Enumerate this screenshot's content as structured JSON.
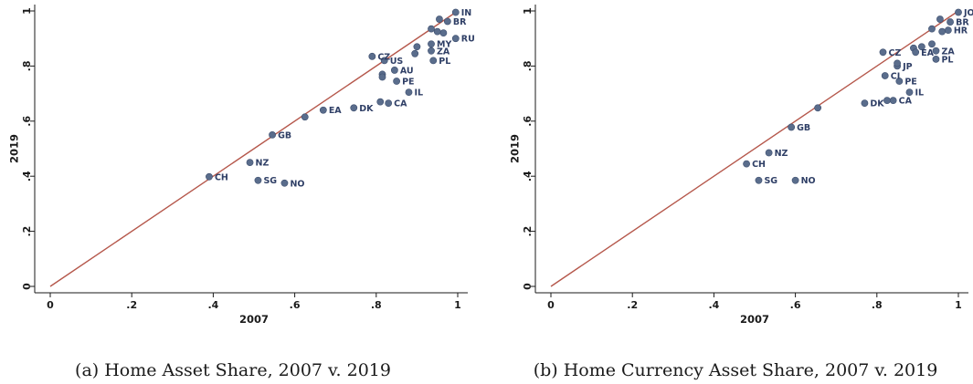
{
  "chart_data": [
    {
      "type": "scatter",
      "caption": "(a) Home Asset Share, 2007 v. 2019",
      "xlabel": "2007",
      "ylabel": "2019",
      "xlim": [
        0,
        1
      ],
      "ylim": [
        0,
        1
      ],
      "xticks": [
        "0",
        ".2",
        ".4",
        ".6",
        ".8",
        "1"
      ],
      "yticks": [
        "0",
        ".2",
        ".4",
        ".6",
        ".8",
        "1"
      ],
      "reference_line": "45-degree",
      "grid": false,
      "points": [
        {
          "label": "IN",
          "x": 0.995,
          "y": 0.995
        },
        {
          "label": "BR",
          "x": 0.975,
          "y": 0.962
        },
        {
          "label": "",
          "x": 0.955,
          "y": 0.97
        },
        {
          "label": "",
          "x": 0.935,
          "y": 0.935
        },
        {
          "label": "",
          "x": 0.965,
          "y": 0.92
        },
        {
          "label": "",
          "x": 0.95,
          "y": 0.925
        },
        {
          "label": "RU",
          "x": 0.995,
          "y": 0.9
        },
        {
          "label": "MY",
          "x": 0.935,
          "y": 0.88
        },
        {
          "label": "",
          "x": 0.9,
          "y": 0.87
        },
        {
          "label": "ZA",
          "x": 0.935,
          "y": 0.855
        },
        {
          "label": "",
          "x": 0.895,
          "y": 0.845
        },
        {
          "label": "CZ",
          "x": 0.79,
          "y": 0.835
        },
        {
          "label": "US",
          "x": 0.82,
          "y": 0.82
        },
        {
          "label": "PL",
          "x": 0.94,
          "y": 0.82
        },
        {
          "label": "AU",
          "x": 0.845,
          "y": 0.785
        },
        {
          "label": "",
          "x": 0.815,
          "y": 0.77
        },
        {
          "label": "",
          "x": 0.815,
          "y": 0.76
        },
        {
          "label": "PE",
          "x": 0.85,
          "y": 0.745
        },
        {
          "label": "IL",
          "x": 0.88,
          "y": 0.705
        },
        {
          "label": "",
          "x": 0.81,
          "y": 0.67
        },
        {
          "label": "CA",
          "x": 0.83,
          "y": 0.665
        },
        {
          "label": "DK",
          "x": 0.745,
          "y": 0.648
        },
        {
          "label": "EA",
          "x": 0.67,
          "y": 0.64
        },
        {
          "label": "",
          "x": 0.625,
          "y": 0.615
        },
        {
          "label": "GB",
          "x": 0.545,
          "y": 0.55
        },
        {
          "label": "NZ",
          "x": 0.49,
          "y": 0.45
        },
        {
          "label": "CH",
          "x": 0.39,
          "y": 0.398
        },
        {
          "label": "SG",
          "x": 0.51,
          "y": 0.385
        },
        {
          "label": "NO",
          "x": 0.575,
          "y": 0.375
        }
      ]
    },
    {
      "type": "scatter",
      "caption": "(b) Home Currency Asset Share, 2007 v. 2019",
      "xlabel": "2007",
      "ylabel": "2019",
      "xlim": [
        0,
        1
      ],
      "ylim": [
        0,
        1
      ],
      "xticks": [
        "0",
        ".2",
        ".4",
        ".6",
        ".8",
        "1"
      ],
      "yticks": [
        "0",
        ".2",
        ".4",
        ".6",
        ".8",
        "1"
      ],
      "reference_line": "45-degree",
      "grid": false,
      "points": [
        {
          "label": "JO",
          "x": 1.0,
          "y": 0.995
        },
        {
          "label": "BR",
          "x": 0.98,
          "y": 0.96
        },
        {
          "label": "",
          "x": 0.955,
          "y": 0.97
        },
        {
          "label": "HR",
          "x": 0.975,
          "y": 0.93
        },
        {
          "label": "",
          "x": 0.935,
          "y": 0.935
        },
        {
          "label": "",
          "x": 0.96,
          "y": 0.925
        },
        {
          "label": "ZA",
          "x": 0.945,
          "y": 0.855
        },
        {
          "label": "",
          "x": 0.935,
          "y": 0.88
        },
        {
          "label": "",
          "x": 0.91,
          "y": 0.87
        },
        {
          "label": "",
          "x": 0.89,
          "y": 0.865
        },
        {
          "label": "EA",
          "x": 0.895,
          "y": 0.85
        },
        {
          "label": "CZ",
          "x": 0.815,
          "y": 0.85
        },
        {
          "label": "PL",
          "x": 0.945,
          "y": 0.825
        },
        {
          "label": "JP",
          "x": 0.85,
          "y": 0.8
        },
        {
          "label": "",
          "x": 0.85,
          "y": 0.81
        },
        {
          "label": "CI",
          "x": 0.82,
          "y": 0.765
        },
        {
          "label": "PE",
          "x": 0.855,
          "y": 0.745
        },
        {
          "label": "IL",
          "x": 0.88,
          "y": 0.705
        },
        {
          "label": "CA",
          "x": 0.84,
          "y": 0.675
        },
        {
          "label": "",
          "x": 0.825,
          "y": 0.675
        },
        {
          "label": "DK",
          "x": 0.77,
          "y": 0.665
        },
        {
          "label": "",
          "x": 0.655,
          "y": 0.648
        },
        {
          "label": "GB",
          "x": 0.59,
          "y": 0.578
        },
        {
          "label": "NZ",
          "x": 0.535,
          "y": 0.485
        },
        {
          "label": "CH",
          "x": 0.48,
          "y": 0.445
        },
        {
          "label": "SG",
          "x": 0.51,
          "y": 0.385
        },
        {
          "label": "NO",
          "x": 0.6,
          "y": 0.385
        }
      ]
    }
  ],
  "colors": {
    "point_fill": "#5a6d8c",
    "point_edge": "#3d4e6e",
    "label": "#2f3f66",
    "reference_line": "#b5574b",
    "axis": "#1a1a1a"
  }
}
